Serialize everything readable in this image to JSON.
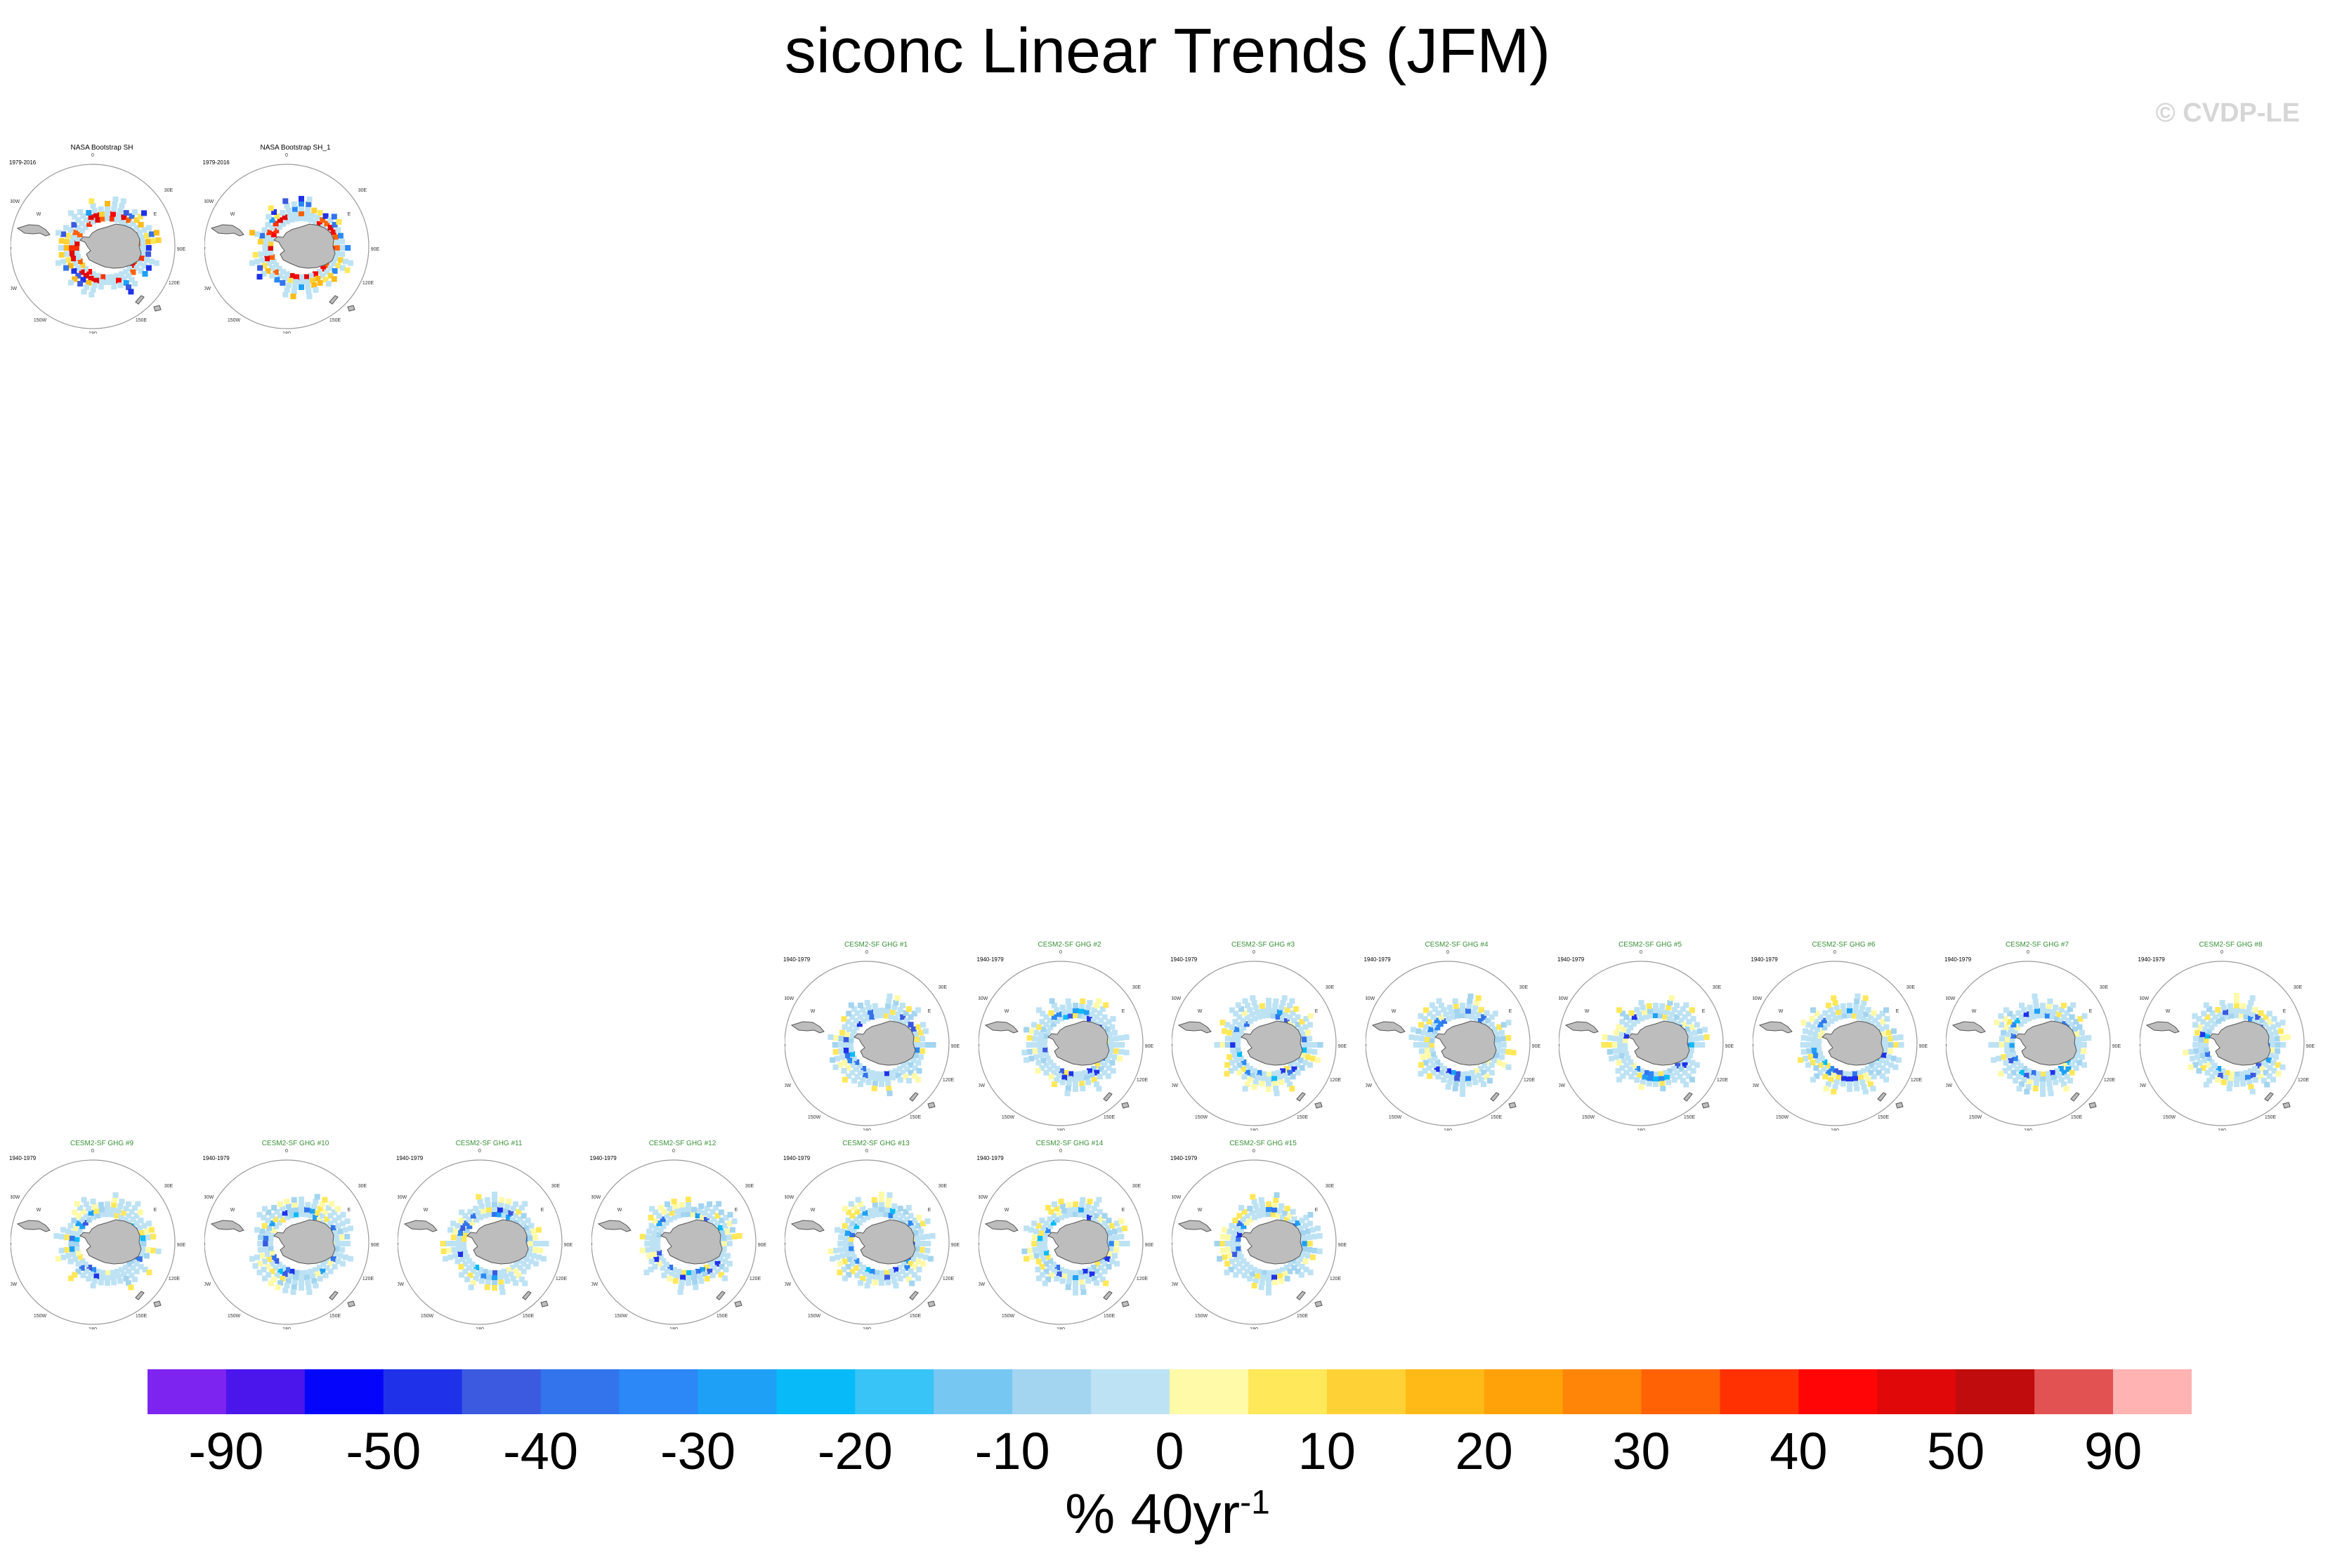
{
  "title": "siconc Linear Trends (JFM)",
  "watermark": "© CVDP-LE",
  "colors": {
    "land": "#bdbdbd",
    "obs_title": "#000000",
    "model_title": "#3a8f3a"
  },
  "chart_data": {
    "type": "heatmap",
    "projection": "south-polar-stereographic",
    "season": "JFM",
    "variable": "siconc",
    "panels": [
      {
        "title": "NASA Bootstrap SH",
        "period": "1979-2016",
        "pattern": "obs"
      },
      {
        "title": "NASA Bootstrap SH_1",
        "period": "1979-2016",
        "pattern": "obs"
      },
      {
        "title": "CESM2-SF GHG #1",
        "period": "1940-1979",
        "pattern": "model"
      },
      {
        "title": "CESM2-SF GHG #2",
        "period": "1940-1979",
        "pattern": "model"
      },
      {
        "title": "CESM2-SF GHG #3",
        "period": "1940-1979",
        "pattern": "model"
      },
      {
        "title": "CESM2-SF GHG #4",
        "period": "1940-1979",
        "pattern": "model"
      },
      {
        "title": "CESM2-SF GHG #5",
        "period": "1940-1979",
        "pattern": "model"
      },
      {
        "title": "CESM2-SF GHG #6",
        "period": "1940-1979",
        "pattern": "model"
      },
      {
        "title": "CESM2-SF GHG #7",
        "period": "1940-1979",
        "pattern": "model"
      },
      {
        "title": "CESM2-SF GHG #8",
        "period": "1940-1979",
        "pattern": "model"
      },
      {
        "title": "CESM2-SF GHG #9",
        "period": "1940-1979",
        "pattern": "model"
      },
      {
        "title": "CESM2-SF GHG #10",
        "period": "1940-1979",
        "pattern": "model"
      },
      {
        "title": "CESM2-SF GHG #11",
        "period": "1940-1979",
        "pattern": "model"
      },
      {
        "title": "CESM2-SF GHG #12",
        "period": "1940-1979",
        "pattern": "model"
      },
      {
        "title": "CESM2-SF GHG #13",
        "period": "1940-1979",
        "pattern": "model"
      },
      {
        "title": "CESM2-SF GHG #14",
        "period": "1940-1979",
        "pattern": "model"
      },
      {
        "title": "CESM2-SF GHG #15",
        "period": "1940-1979",
        "pattern": "model"
      }
    ],
    "colorbar": {
      "labels": [
        "-90",
        "-50",
        "-40",
        "-30",
        "-20",
        "-10",
        "0",
        "10",
        "20",
        "30",
        "40",
        "50",
        "90"
      ],
      "colors": [
        "#7d24f0",
        "#4b16ec",
        "#0505fb",
        "#1f32ea",
        "#3b5ae0",
        "#3374ec",
        "#2b88f6",
        "#1ea0f6",
        "#08baf8",
        "#38c4f6",
        "#76c8f2",
        "#a3d4f0",
        "#bde2f4",
        "#fffaa8",
        "#ffe85a",
        "#fed237",
        "#ffba18",
        "#ffa20a",
        "#ff8508",
        "#ff6205",
        "#ff3102",
        "#ff0505",
        "#e00808",
        "#c00c0c",
        "#e35252",
        "#ffb3b3"
      ],
      "units": "% 40yr",
      "units_exponent": "-1"
    },
    "map_labels": {
      "top": "0",
      "bottom": "180",
      "right_upper": "30E",
      "right_mid": "90E",
      "right_lower": "120E",
      "left_upper": "30W",
      "left_mid": "90W",
      "left_lower": "120W",
      "bottom_left": "150W",
      "bottom_right": "150E",
      "inner_e": "E",
      "inner_w": "W"
    }
  }
}
